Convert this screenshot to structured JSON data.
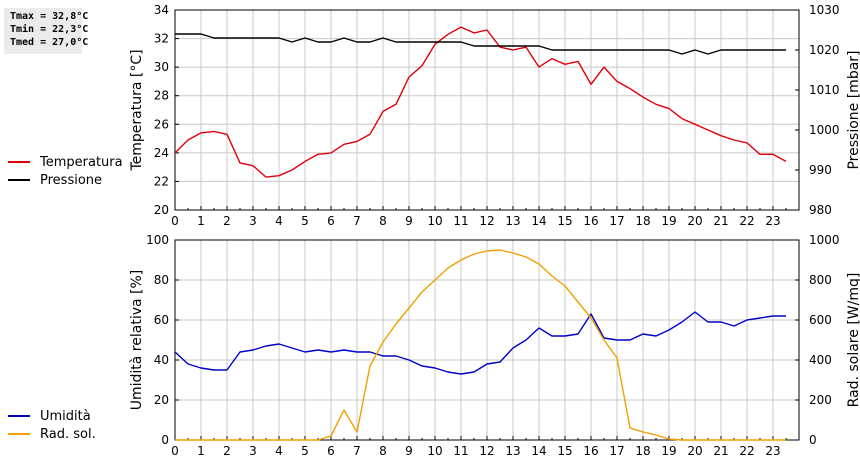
{
  "stats": {
    "tmax": "Tmax = 32,8°C",
    "tmin": "Tmin = 22,3°C",
    "tmed": "Tmed = 27,0°C"
  },
  "colors": {
    "temperature": "#e0000a",
    "pressure": "#000000",
    "humidity": "#0000c8",
    "radiation": "#f0a000",
    "grid": "#c8c8c8"
  },
  "chart_data": [
    {
      "type": "line",
      "legend_position": "left",
      "xlim": [
        0,
        24
      ],
      "x_ticks": [
        0,
        1,
        2,
        3,
        4,
        5,
        6,
        7,
        8,
        9,
        10,
        11,
        12,
        13,
        14,
        15,
        16,
        17,
        18,
        19,
        20,
        21,
        22,
        23
      ],
      "ylabel_left": "Temperatura [°C]",
      "ylim_left": [
        20,
        34
      ],
      "y_ticks_left": [
        20,
        22,
        24,
        26,
        28,
        30,
        32,
        34
      ],
      "ylabel_right": "Pressione [mbar]",
      "ylim_right": [
        980,
        1030
      ],
      "y_ticks_right": [
        980,
        990,
        1000,
        1010,
        1020,
        1030
      ],
      "grid": true,
      "series": [
        {
          "name": "Temperatura",
          "axis": "left",
          "color": "#e0000a",
          "x": [
            0,
            0.5,
            1,
            1.5,
            2,
            2.5,
            3,
            3.5,
            4,
            4.5,
            5,
            5.5,
            6,
            6.5,
            7,
            7.5,
            8,
            8.5,
            9,
            9.5,
            10,
            10.5,
            11,
            11.5,
            12,
            12.5,
            13,
            13.5,
            14,
            14.5,
            15,
            15.5,
            16,
            16.5,
            17,
            17.5,
            18,
            18.5,
            19,
            19.5,
            20,
            20.5,
            21,
            21.5,
            22,
            22.5,
            23,
            23.5
          ],
          "y": [
            24.0,
            24.9,
            25.4,
            25.5,
            25.3,
            23.3,
            23.1,
            22.3,
            22.4,
            22.8,
            23.4,
            23.9,
            24.0,
            24.6,
            24.8,
            25.3,
            26.9,
            27.4,
            29.3,
            30.1,
            31.6,
            32.3,
            32.8,
            32.4,
            32.6,
            31.4,
            31.2,
            31.4,
            30.0,
            30.6,
            30.2,
            30.4,
            28.8,
            30.0,
            29.0,
            28.5,
            27.9,
            27.4,
            27.1,
            26.4,
            26.0,
            25.6,
            25.2,
            24.9,
            24.7,
            23.9,
            23.9,
            23.4
          ]
        },
        {
          "name": "Pressione",
          "axis": "right",
          "color": "#000000",
          "x": [
            0,
            0.5,
            1,
            1.5,
            2,
            2.5,
            3,
            3.5,
            4,
            4.5,
            5,
            5.5,
            6,
            6.5,
            7,
            7.5,
            8,
            8.5,
            9,
            9.5,
            10,
            10.5,
            11,
            11.5,
            12,
            12.5,
            13,
            13.5,
            14,
            14.5,
            15,
            15.5,
            16,
            16.5,
            17,
            17.5,
            18,
            18.5,
            19,
            19.5,
            20,
            20.5,
            21,
            21.5,
            22,
            22.5,
            23,
            23.5
          ],
          "y": [
            1024.0,
            1024.0,
            1024.0,
            1023.0,
            1023.0,
            1023.0,
            1023.0,
            1023.0,
            1023.0,
            1022.0,
            1023.0,
            1022.0,
            1022.0,
            1023.0,
            1022.0,
            1022.0,
            1023.0,
            1022.0,
            1022.0,
            1022.0,
            1022.0,
            1022.0,
            1022.0,
            1021.0,
            1021.0,
            1021.0,
            1021.0,
            1021.0,
            1021.0,
            1020.0,
            1020.0,
            1020.0,
            1020.0,
            1020.0,
            1020.0,
            1020.0,
            1020.0,
            1020.0,
            1020.0,
            1019.0,
            1020.0,
            1019.0,
            1020.0,
            1020.0,
            1020.0,
            1020.0,
            1020.0,
            1020.0
          ]
        }
      ]
    },
    {
      "type": "line",
      "legend_position": "left",
      "xlim": [
        0,
        24
      ],
      "x_ticks": [
        0,
        1,
        2,
        3,
        4,
        5,
        6,
        7,
        8,
        9,
        10,
        11,
        12,
        13,
        14,
        15,
        16,
        17,
        18,
        19,
        20,
        21,
        22,
        23
      ],
      "ylabel_left": "Umidità relativa [%]",
      "ylim_left": [
        0,
        100
      ],
      "y_ticks_left": [
        0,
        20,
        40,
        60,
        80,
        100
      ],
      "ylabel_right": "Rad. solare [W/mq]",
      "ylim_right": [
        0,
        1000
      ],
      "y_ticks_right": [
        0,
        200,
        400,
        600,
        800,
        1000
      ],
      "grid": true,
      "series": [
        {
          "name": "Umidità",
          "axis": "left",
          "color": "#0000c8",
          "x": [
            0,
            0.5,
            1,
            1.5,
            2,
            2.5,
            3,
            3.5,
            4,
            4.5,
            5,
            5.5,
            6,
            6.5,
            7,
            7.5,
            8,
            8.5,
            9,
            9.5,
            10,
            10.5,
            11,
            11.5,
            12,
            12.5,
            13,
            13.5,
            14,
            14.5,
            15,
            15.5,
            16,
            16.5,
            17,
            17.5,
            18,
            18.5,
            19,
            19.5,
            20,
            20.5,
            21,
            21.5,
            22,
            22.5,
            23,
            23.5
          ],
          "y": [
            44,
            38,
            36,
            35,
            35,
            44,
            45,
            47,
            48,
            46,
            44,
            45,
            44,
            45,
            44,
            44,
            42,
            42,
            40,
            37,
            36,
            34,
            33,
            34,
            38,
            39,
            46,
            50,
            56,
            52,
            52,
            53,
            63,
            51,
            50,
            50,
            53,
            52,
            55,
            59,
            64,
            59,
            59,
            57,
            60,
            61,
            62,
            62
          ]
        },
        {
          "name": "Rad. sol.",
          "axis": "right",
          "color": "#f0a000",
          "x": [
            0,
            0.5,
            1,
            1.5,
            2,
            2.5,
            3,
            3.5,
            4,
            4.5,
            5,
            5.5,
            6,
            6.5,
            7,
            7.5,
            8,
            8.5,
            9,
            9.5,
            10,
            10.5,
            11,
            11.5,
            12,
            12.5,
            13,
            13.5,
            14,
            14.5,
            15,
            15.5,
            16,
            16.5,
            17,
            17.5,
            18,
            18.5,
            19,
            19.5,
            20,
            20.5,
            21,
            21.5,
            22,
            22.5,
            23,
            23.5
          ],
          "y": [
            0,
            0,
            0,
            0,
            0,
            0,
            0,
            0,
            0,
            0,
            0,
            0,
            20,
            150,
            40,
            370,
            490,
            580,
            660,
            740,
            800,
            860,
            900,
            930,
            945,
            950,
            935,
            915,
            880,
            820,
            770,
            690,
            610,
            500,
            410,
            60,
            40,
            25,
            5,
            0,
            0,
            0,
            0,
            0,
            0,
            0,
            0,
            0
          ]
        }
      ]
    }
  ]
}
